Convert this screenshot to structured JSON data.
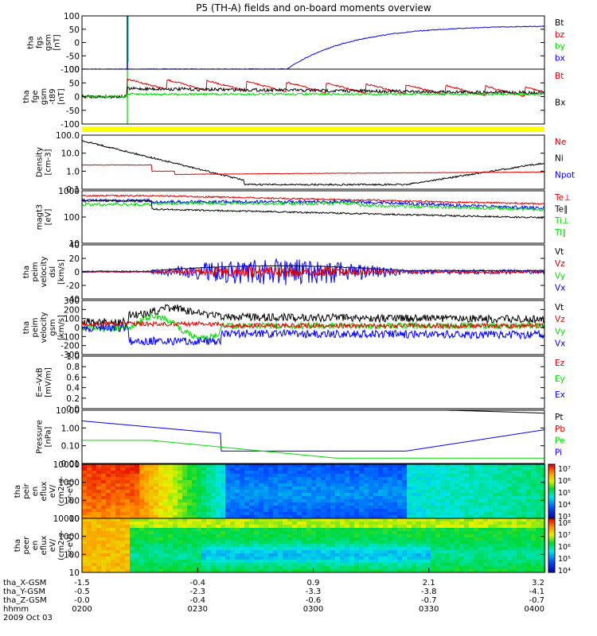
{
  "title": "P5 (TH-A) fields and on-board moments overview",
  "colors": {
    "black": "#000000",
    "red": "#e00000",
    "green": "#00dd00",
    "blue": "#0000ee",
    "yellow": "#ffff00"
  },
  "panels": [
    {
      "id": "fgs",
      "ylabel": [
        "tha",
        "fgs",
        "gsm",
        "[nT]"
      ],
      "yticks": [
        "100",
        "50",
        "0",
        "-50",
        "-100"
      ],
      "legend": [
        {
          "t": "Bt",
          "c": "black"
        },
        {
          "t": "bz",
          "c": "red"
        },
        {
          "t": "by",
          "c": "green"
        },
        {
          "t": "bx",
          "c": "blue"
        }
      ]
    },
    {
      "id": "fge",
      "ylabel": [
        "tha",
        "fge",
        "gsm",
        "-t89",
        "[nT]"
      ],
      "yticks": [
        "100",
        "50",
        "0",
        "-50",
        "-100"
      ],
      "legend": [
        {
          "t": "Bt",
          "c": "red"
        },
        {
          "t": "Bx",
          "c": "black"
        }
      ]
    },
    {
      "id": "density",
      "ylabel": [
        "Density",
        "[cm-3]"
      ],
      "yticks": [
        "100.0",
        "10.0",
        "1.0",
        "0.1"
      ],
      "legend": [
        {
          "t": "Ne",
          "c": "red"
        },
        {
          "t": "Ni",
          "c": "black"
        },
        {
          "t": "Npot",
          "c": "blue"
        }
      ]
    },
    {
      "id": "temp",
      "ylabel": [
        "magt3",
        "[eV]"
      ],
      "yticks": [
        "1000",
        "100",
        "10"
      ],
      "legend": [
        {
          "t": "Te⊥",
          "c": "red"
        },
        {
          "t": "Te∥",
          "c": "black"
        },
        {
          "t": "Ti⊥",
          "c": "green"
        },
        {
          "t": "Ti∥",
          "c": "green"
        }
      ]
    },
    {
      "id": "veldsl",
      "ylabel": [
        "tha",
        "peim",
        "velocity",
        "dsl",
        "[km/s]"
      ],
      "yticks": [
        "40",
        "20",
        "0",
        "-20",
        "-40"
      ],
      "legend": [
        {
          "t": "Vt",
          "c": "black"
        },
        {
          "t": "Vz",
          "c": "red"
        },
        {
          "t": "Vy",
          "c": "green"
        },
        {
          "t": "Vx",
          "c": "blue"
        }
      ]
    },
    {
      "id": "velgsm",
      "ylabel": [
        "tha",
        "peim",
        "velocity",
        "gsm",
        "[km/s]"
      ],
      "yticks": [
        "300",
        "200",
        "100",
        "0",
        "-100",
        "-200",
        "-300"
      ],
      "legend": [
        {
          "t": "Vt",
          "c": "black"
        },
        {
          "t": "Vz",
          "c": "red"
        },
        {
          "t": "Vy",
          "c": "green"
        },
        {
          "t": "Vx",
          "c": "blue"
        }
      ]
    },
    {
      "id": "efield",
      "ylabel": [
        "E=-VxB",
        "[mV/m]"
      ],
      "yticks": [
        "1.0",
        "0.8",
        "0.6",
        "0.4",
        "0.2",
        "0.0"
      ],
      "legend": [
        {
          "t": "Ez",
          "c": "red"
        },
        {
          "t": "Ey",
          "c": "green"
        },
        {
          "t": "Ex",
          "c": "blue"
        }
      ]
    },
    {
      "id": "pressure",
      "ylabel": [
        "Pressure",
        "[nPa]"
      ],
      "yticks": [
        "10.00",
        "1.00",
        "0.10",
        "0.01"
      ],
      "legend": [
        {
          "t": "Pt",
          "c": "black"
        },
        {
          "t": "Pb",
          "c": "red"
        },
        {
          "t": "Pe",
          "c": "green"
        },
        {
          "t": "Pi",
          "c": "blue"
        }
      ]
    },
    {
      "id": "peir",
      "ylabel": [
        "tha",
        "peir",
        "en",
        "eflux",
        "eV/",
        "(cm2-s-",
        "sr-eV)"
      ],
      "yticks": [
        "10000",
        "1000",
        "100",
        "10"
      ],
      "colorbar": [
        "10⁷",
        "10⁶",
        "10⁵",
        "10⁴",
        "10³"
      ]
    },
    {
      "id": "peer",
      "ylabel": [
        "tha",
        "peer",
        "en",
        "eflux",
        "eV/",
        "(cm2-s-",
        "sr-eV)"
      ],
      "yticks": [
        "10000",
        "1000",
        "100",
        "10"
      ],
      "colorbar": [
        "10⁸",
        "10⁷",
        "10⁶",
        "10⁵",
        "10⁴"
      ]
    }
  ],
  "xaxis": {
    "rows": [
      {
        "label": "tha_X-GSM",
        "values": [
          "-1.5",
          "-0.4",
          "0.9",
          "2.1",
          "3.2"
        ]
      },
      {
        "label": "tha_Y-GSM",
        "values": [
          "-0.5",
          "-2.3",
          "-3.3",
          "-3.8",
          "-4.1"
        ]
      },
      {
        "label": "tha_Z-GSM",
        "values": [
          "-0.0",
          "-0.4",
          "-0.6",
          "-0.7",
          "-0.7"
        ]
      },
      {
        "label": "hhmm",
        "values": [
          "0200",
          "0230",
          "0300",
          "0330",
          "0400"
        ]
      }
    ],
    "date": "2009 Oct 03"
  }
}
